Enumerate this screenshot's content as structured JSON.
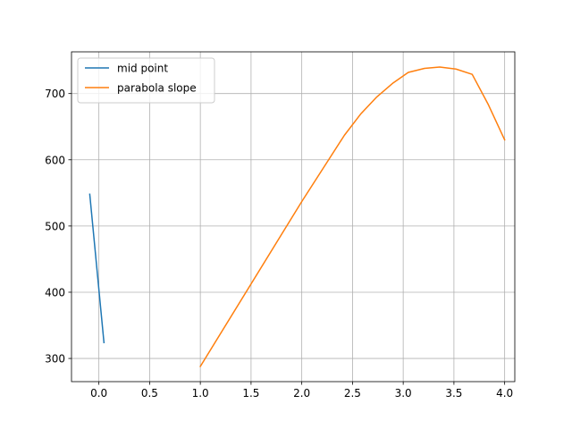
{
  "chart_data": {
    "type": "line",
    "title": "",
    "xlabel": "",
    "ylabel": "",
    "xlim": [
      -0.27,
      4.1
    ],
    "ylim": [
      265,
      763
    ],
    "xticks": [
      0.0,
      0.5,
      1.0,
      1.5,
      2.0,
      2.5,
      3.0,
      3.5,
      4.0
    ],
    "xtick_labels": [
      "0.0",
      "0.5",
      "1.0",
      "1.5",
      "2.0",
      "2.5",
      "3.0",
      "3.5",
      "4.0"
    ],
    "yticks": [
      300,
      400,
      500,
      600,
      700
    ],
    "ytick_labels": [
      "300",
      "400",
      "500",
      "600",
      "700"
    ],
    "grid": true,
    "legend": "upper-left",
    "series": [
      {
        "name": "mid point",
        "color": "#1f77b4",
        "x": [
          -0.09,
          0.05
        ],
        "y": [
          548,
          324
        ]
      },
      {
        "name": "parabola slope",
        "color": "#ff7f0e",
        "x": [
          1.0,
          2.0,
          2.42,
          2.58,
          2.74,
          2.9,
          3.05,
          3.21,
          3.36,
          3.52,
          3.68,
          3.84,
          4.0
        ],
        "y": [
          288,
          537,
          637,
          669,
          695,
          716,
          732,
          738,
          740,
          737,
          729,
          683,
          630
        ]
      }
    ]
  }
}
